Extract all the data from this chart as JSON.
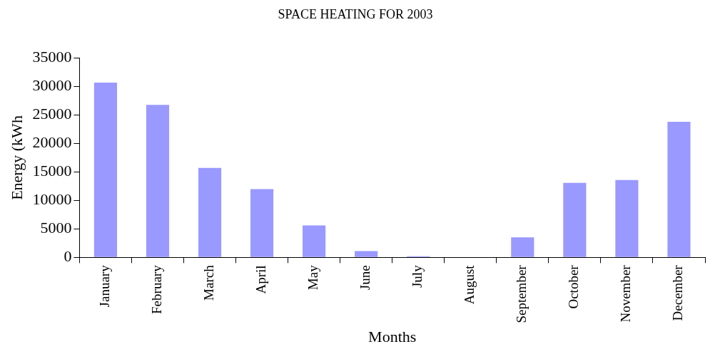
{
  "chart_data": {
    "type": "bar",
    "title": "SPACE HEATING FOR 2003",
    "xlabel": "Months",
    "ylabel": "Energy (kWh",
    "categories": [
      "January",
      "February",
      "March",
      "April",
      "May",
      "June",
      "July",
      "August",
      "September",
      "October",
      "November",
      "December"
    ],
    "values": [
      30700,
      26800,
      15700,
      12000,
      5600,
      1100,
      200,
      0,
      3500,
      13100,
      13600,
      23800
    ],
    "color": "#9999ff",
    "ylim": [
      0,
      35000
    ],
    "yticks": [
      0,
      5000,
      10000,
      15000,
      20000,
      25000,
      30000,
      35000
    ],
    "grid": false,
    "legend": false
  }
}
